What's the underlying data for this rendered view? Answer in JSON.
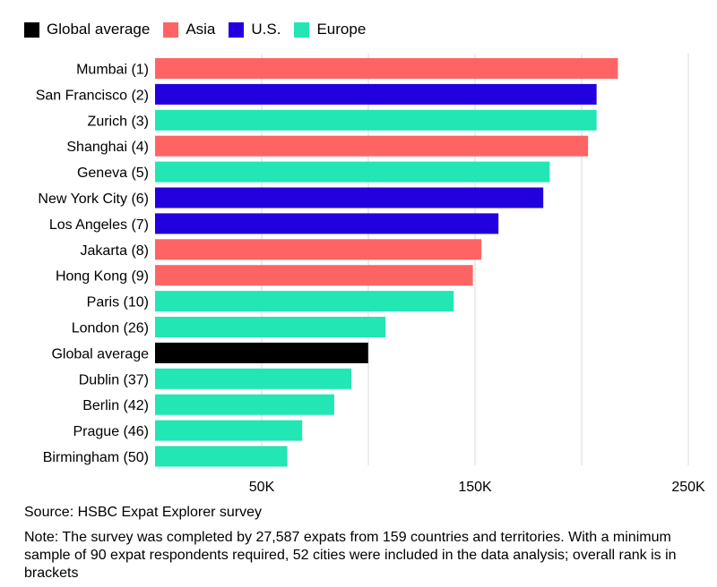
{
  "legend": [
    {
      "label": "Global average",
      "color": "#000000"
    },
    {
      "label": "Asia",
      "color": "#ff6464"
    },
    {
      "label": "U.S.",
      "color": "#2200dd"
    },
    {
      "label": "Europe",
      "color": "#22e6b4"
    }
  ],
  "chart_data": {
    "type": "bar",
    "orientation": "horizontal",
    "categories": [
      "Mumbai (1)",
      "San Francisco (2)",
      "Zurich (3)",
      "Shanghai (4)",
      "Geneva (5)",
      "New York City (6)",
      "Los Angeles (7)",
      "Jakarta (8)",
      "Hong Kong (9)",
      "Paris (10)",
      "London (26)",
      "Global average",
      "Dublin (37)",
      "Berlin (42)",
      "Prague (46)",
      "Birmingham (50)"
    ],
    "values": [
      217000,
      207000,
      207000,
      203000,
      185000,
      182000,
      161000,
      153000,
      149000,
      140000,
      108000,
      99900,
      92000,
      84000,
      69000,
      62000
    ],
    "groups": [
      "Asia",
      "U.S.",
      "Europe",
      "Asia",
      "Europe",
      "U.S.",
      "U.S.",
      "Asia",
      "Asia",
      "Europe",
      "Europe",
      "Global average",
      "Europe",
      "Europe",
      "Europe",
      "Europe"
    ],
    "xlim": [
      0,
      250000
    ],
    "xticks": [
      50000,
      150000,
      250000
    ],
    "xtick_labels": [
      "50K",
      "150K",
      "250K"
    ],
    "gridlines": [
      50000,
      100000,
      150000,
      200000,
      250000
    ],
    "title": "",
    "xlabel": "",
    "ylabel": ""
  },
  "notes": {
    "source": "Source: HSBC Expat Explorer survey",
    "note": "Note: The survey was completed by 27,587 expats from 159 countries and territories. With a minimum sample of 90 expat respondents required, 52 cities were included in the data analysis; overall rank is in brackets"
  }
}
